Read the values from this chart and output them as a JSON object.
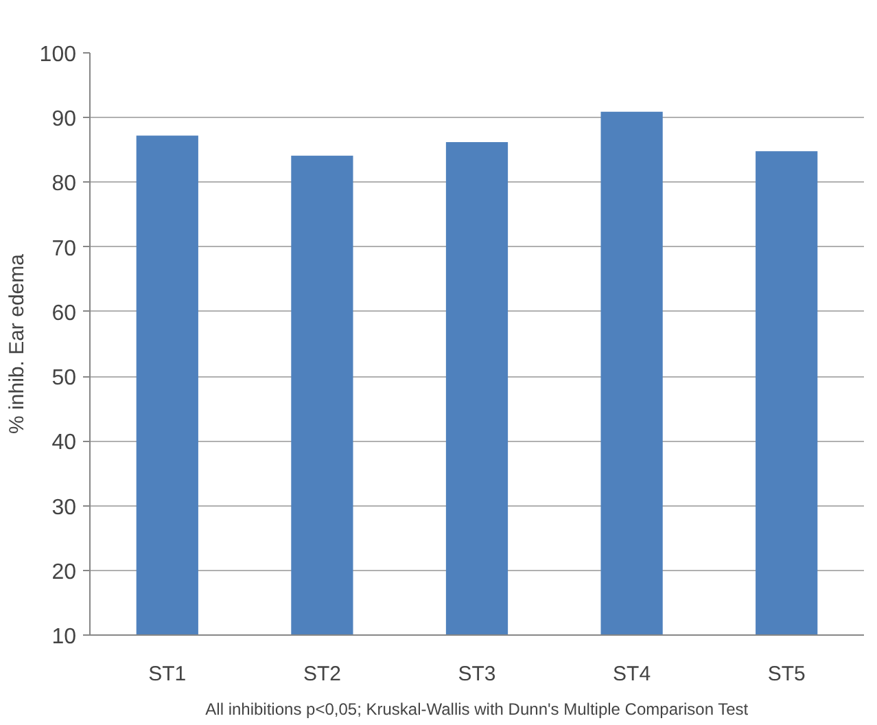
{
  "chart_data": {
    "type": "bar",
    "ylabel": "% inhib. Ear edema",
    "categories": [
      "ST1",
      "ST2",
      "ST3",
      "ST4",
      "ST5"
    ],
    "values": [
      87.2,
      84.1,
      86.2,
      90.9,
      84.8
    ],
    "color": "#4f81bd",
    "ylim": [
      10,
      100
    ],
    "yticks": [
      10,
      20,
      30,
      40,
      50,
      60,
      70,
      80,
      90,
      100
    ],
    "grid": "y",
    "annotations": [
      "All inhibitions p<0,05; Kruskal-Wallis with Dunn's Multiple Comparison Test"
    ]
  }
}
